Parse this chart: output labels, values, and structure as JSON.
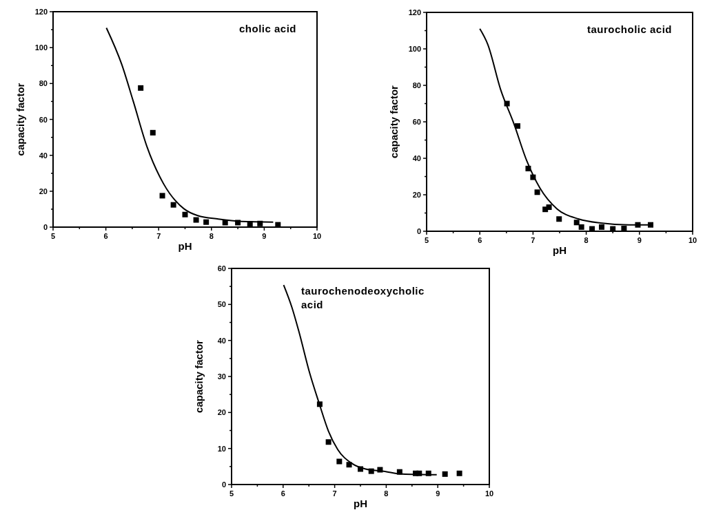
{
  "chart_data": [
    {
      "type": "scatter",
      "xlabel": "pH",
      "ylabel": "capacity factor",
      "annotations": [
        "cholic acid"
      ],
      "xlim": [
        5,
        10
      ],
      "ylim": [
        0,
        120
      ],
      "xticks": [
        5,
        {
          "value": 5.5,
          "label": null
        },
        6,
        {
          "value": 6.5,
          "label": null
        },
        7,
        {
          "value": 7.5,
          "label": null
        },
        8,
        {
          "value": 8.5,
          "label": null
        },
        9,
        {
          "value": 9.5,
          "label": null
        },
        10
      ],
      "yticks": [
        0,
        {
          "value": 10,
          "label": null
        },
        20,
        {
          "value": 30,
          "label": null
        },
        40,
        {
          "value": 50,
          "label": null
        },
        60,
        {
          "value": 70,
          "label": null
        },
        80,
        {
          "value": 90,
          "label": null
        },
        100,
        {
          "value": 110,
          "label": null
        },
        120
      ],
      "series": [
        {
          "marker": "square",
          "color": "#000000",
          "x": [
            6.66,
            6.89,
            7.07,
            7.28,
            7.5,
            7.71,
            7.9,
            8.26,
            8.5,
            8.73,
            8.92,
            9.26
          ],
          "values": [
            77.5,
            52.6,
            17.5,
            12.4,
            7,
            4,
            2.8,
            2.5,
            2.5,
            1.9,
            2,
            1.3
          ]
        },
        {
          "type": "line",
          "color": "#000000",
          "x": [
            6.01,
            6.3,
            6.52,
            6.78,
            7.09,
            7.48,
            7.74,
            8.13,
            8.57,
            9.17
          ],
          "values": [
            111,
            90.7,
            70,
            44.7,
            24.3,
            10.2,
            6.4,
            4.5,
            3.2,
            2.8
          ]
        }
      ]
    },
    {
      "type": "scatter",
      "xlabel": "pH",
      "ylabel": "capacity factor",
      "annotations": [
        "taurocholic acid"
      ],
      "xlim": [
        5,
        10
      ],
      "ylim": [
        0,
        120
      ],
      "xticks": [
        5,
        {
          "value": 5.5,
          "label": null
        },
        6,
        {
          "value": 6.5,
          "label": null
        },
        7,
        {
          "value": 7.5,
          "label": null
        },
        8,
        {
          "value": 8.5,
          "label": null
        },
        9,
        {
          "value": 9.5,
          "label": null
        },
        10
      ],
      "yticks": [
        0,
        {
          "value": 10,
          "label": null
        },
        20,
        {
          "value": 30,
          "label": null
        },
        40,
        {
          "value": 50,
          "label": null
        },
        60,
        {
          "value": 70,
          "label": null
        },
        80,
        {
          "value": 90,
          "label": null
        },
        100,
        {
          "value": 110,
          "label": null
        },
        120
      ],
      "series": [
        {
          "marker": "square",
          "color": "#000000",
          "x": [
            6.51,
            6.71,
            6.91,
            7.0,
            7.08,
            7.23,
            7.3,
            7.49,
            7.82,
            7.91,
            8.11,
            8.29,
            8.5,
            8.71,
            8.97,
            9.21
          ],
          "values": [
            70,
            57.7,
            34.4,
            29.6,
            21.4,
            12,
            13.2,
            6.7,
            4.8,
            2.3,
            1.3,
            2.3,
            1.3,
            1.5,
            3.5,
            3.5
          ]
        },
        {
          "type": "line",
          "color": "#000000",
          "x": [
            6.0,
            6.15,
            6.39,
            6.64,
            6.88,
            7.13,
            7.45,
            7.86,
            8.27,
            8.8,
            9.25
          ],
          "values": [
            111,
            102.4,
            77.8,
            59,
            38.8,
            23.7,
            12.3,
            6.7,
            4.5,
            3.5,
            3.5
          ]
        }
      ]
    },
    {
      "type": "scatter",
      "xlabel": "pH",
      "ylabel": "capacity factor",
      "annotations": [
        "taurochenodeoxycholic acid"
      ],
      "xlim": [
        5,
        10
      ],
      "ylim": [
        0,
        60
      ],
      "xticks": [
        5,
        {
          "value": 5.5,
          "label": null
        },
        6,
        {
          "value": 6.5,
          "label": null
        },
        7,
        {
          "value": 7.5,
          "label": null
        },
        8,
        {
          "value": 8.5,
          "label": null
        },
        9,
        {
          "value": 9.5,
          "label": null
        },
        10
      ],
      "yticks": [
        0,
        {
          "value": 5,
          "label": null
        },
        10,
        {
          "value": 15,
          "label": null
        },
        20,
        {
          "value": 25,
          "label": null
        },
        30,
        {
          "value": 35,
          "label": null
        },
        40,
        {
          "value": 45,
          "label": null
        },
        50,
        {
          "value": 55,
          "label": null
        },
        60
      ],
      "series": [
        {
          "marker": "square",
          "color": "#000000",
          "x": [
            6.71,
            6.88,
            7.09,
            7.28,
            7.5,
            7.71,
            7.88,
            8.26,
            8.57,
            8.64,
            8.82,
            9.14,
            9.42
          ],
          "values": [
            22.3,
            11.8,
            6.4,
            5.5,
            4.3,
            3.7,
            4.1,
            3.5,
            3.1,
            3.1,
            3.1,
            2.9,
            3.1
          ]
        },
        {
          "type": "line",
          "color": "#000000",
          "x": [
            6.01,
            6.17,
            6.3,
            6.52,
            6.7,
            6.88,
            7.06,
            7.33,
            7.6,
            7.95,
            8.31,
            8.98
          ],
          "values": [
            55.4,
            49.2,
            42.8,
            30.7,
            22.5,
            14.8,
            9.7,
            5.9,
            4.3,
            3.7,
            2.9,
            2.7
          ]
        }
      ]
    }
  ]
}
